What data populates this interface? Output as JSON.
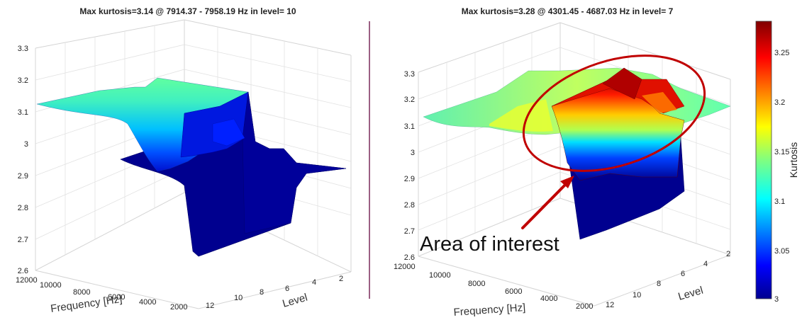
{
  "chart_data": [
    {
      "type": "surface",
      "title": "Max kurtosis=3.14 @ 7914.37 - 7958.19 Hz in level= 10",
      "xlabel": "Frequency [Hz]",
      "ylabel": "Level",
      "zlabel": "",
      "x_ticks": [
        "12000",
        "10000",
        "8000",
        "6000",
        "4000",
        "2000"
      ],
      "y_ticks": [
        "12",
        "10",
        "8",
        "6",
        "4",
        "2"
      ],
      "z_ticks": [
        "2.6",
        "2.7",
        "2.8",
        "2.9",
        "3",
        "3.1",
        "3.2",
        "3.3"
      ],
      "zlim": [
        2.6,
        3.3
      ],
      "grid": true,
      "max_kurtosis": 3.14,
      "max_band_hz": [
        7914.37,
        7958.19
      ],
      "max_level": 10
    },
    {
      "type": "surface",
      "title": "Max kurtosis=3.28 @ 4301.45 - 4687.03 Hz in level=  7",
      "xlabel": "Frequency [Hz]",
      "ylabel": "Level",
      "zlabel": "",
      "x_ticks": [
        "12000",
        "10000",
        "8000",
        "6000",
        "4000",
        "2000"
      ],
      "y_ticks": [
        "12",
        "10",
        "8",
        "6",
        "4",
        "2"
      ],
      "z_ticks": [
        "2.6",
        "2.7",
        "2.8",
        "2.9",
        "3",
        "3.1",
        "3.2",
        "3.3"
      ],
      "zlim": [
        2.6,
        3.3
      ],
      "grid": true,
      "max_kurtosis": 3.28,
      "max_band_hz": [
        4301.45,
        4687.03
      ],
      "max_level": 7,
      "annotation": "Area of interest"
    }
  ],
  "colorbar": {
    "label": "Kurtosis",
    "ticks": [
      "3.25",
      "3.2",
      "3.15",
      "3.1",
      "3.05",
      "3"
    ],
    "range": [
      3,
      3.28
    ],
    "colormap": "jet"
  },
  "colors": {
    "annotation": "#c00000",
    "surface_low": "#00008f",
    "surface_high": "#800000"
  }
}
